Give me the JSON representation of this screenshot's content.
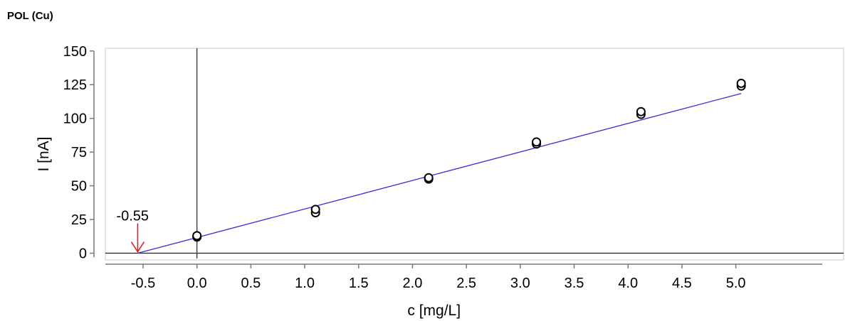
{
  "title": "POL (Cu)",
  "chart_data": {
    "type": "scatter",
    "title": "POL (Cu)",
    "xlabel": "c [mg/L]",
    "ylabel": "I [nA]",
    "xlim": [
      -0.85,
      6.0
    ],
    "ylim": [
      -5,
      152
    ],
    "x_ticks": [
      "-0.5",
      "0.0",
      "0.5",
      "1.0",
      "1.5",
      "2.0",
      "2.5",
      "3.0",
      "3.5",
      "4.0",
      "4.5",
      "5.0"
    ],
    "y_ticks": [
      "0",
      "25",
      "50",
      "75",
      "100",
      "125",
      "150"
    ],
    "series": [
      {
        "x": [
          0.0,
          0.0,
          1.1,
          1.1,
          2.15,
          2.15,
          3.15,
          3.15,
          4.12,
          4.12,
          5.05,
          5.05
        ],
        "y": [
          12,
          13,
          30,
          32.5,
          55,
          56,
          81,
          82.5,
          103,
          105,
          124,
          126
        ]
      }
    ],
    "fit_line": {
      "x": [
        -0.55,
        5.05
      ],
      "y": [
        0,
        118.5
      ],
      "color": "#3b2bd9"
    },
    "vertical_line_x": 0.0,
    "horizontal_line_y": 0,
    "annotation": {
      "text": "-0.55",
      "x": -0.55,
      "color": "#e02020"
    },
    "grid": false
  }
}
